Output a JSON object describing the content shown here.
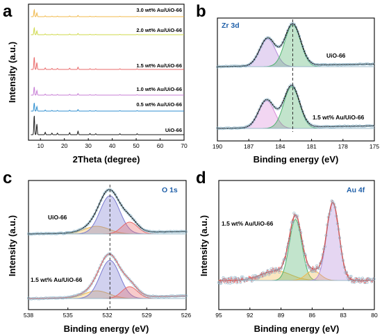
{
  "figure": {
    "panels": [
      {
        "id": "a",
        "letter": "a"
      },
      {
        "id": "b",
        "letter": "b"
      },
      {
        "id": "c",
        "letter": "c"
      },
      {
        "id": "d",
        "letter": "d"
      }
    ]
  },
  "chart_data": [
    {
      "panel": "a",
      "type": "line",
      "xlabel": "2Theta (degree)",
      "ylabel": "Intensity (a.u.)",
      "xlim": [
        5,
        70
      ],
      "xticks": [
        10,
        20,
        30,
        40,
        50,
        60,
        70
      ],
      "stacked": true,
      "series": [
        {
          "name": "UiO-66",
          "color": "#1a1a1a"
        },
        {
          "name": "0.5 wt% Au/UiO-66",
          "color": "#2f8fd0"
        },
        {
          "name": "1.0 wt% Au/UiO-66",
          "color": "#c77dd6"
        },
        {
          "name": "1.5 wt% Au/UiO-66",
          "color": "#ea6a6a"
        },
        {
          "name": "2.0 wt% Au/UiO-66",
          "color": "#cfd94a"
        },
        {
          "name": "3.0 wt% Au/UiO-66",
          "color": "#f0b84a"
        }
      ],
      "peaks_2theta": [
        7.4,
        8.5,
        12.0,
        14.8,
        17.1,
        22.2,
        25.7,
        30.7,
        33.1,
        43.2,
        50.4
      ]
    },
    {
      "panel": "b",
      "type": "line",
      "title": "Zr 3d",
      "xlabel": "Binding energy (eV)",
      "ylabel": "",
      "xlim": [
        190,
        175
      ],
      "xticks": [
        190,
        187,
        184,
        181,
        178,
        175
      ],
      "reference_line_eV": 182.8,
      "series": [
        {
          "name": "UiO-66",
          "peaks_eV": [
            185.2,
            182.8
          ],
          "peak_colors": [
            "#b48ad9",
            "#4fb26e"
          ]
        },
        {
          "name": "1.5 wt% Au/UiO-66",
          "peaks_eV": [
            185.3,
            182.9
          ],
          "peak_colors": [
            "#d98ad9",
            "#4fb26e"
          ]
        }
      ]
    },
    {
      "panel": "c",
      "type": "line",
      "title": "O 1s",
      "xlabel": "Binding energy (eV)",
      "ylabel": "Intensity (a.u.)",
      "xlim": [
        538,
        526
      ],
      "xticks": [
        538,
        535,
        532,
        529,
        526
      ],
      "reference_line_eV": 531.8,
      "series": [
        {
          "name": "UiO-66",
          "peaks_eV": [
            532.8,
            531.8,
            530.3
          ],
          "peak_colors": [
            "#f0b84a",
            "#7a7ad0",
            "#e86a6a"
          ]
        },
        {
          "name": "1.5 wt% Au/UiO-66",
          "peaks_eV": [
            532.8,
            531.8,
            530.3
          ],
          "peak_colors": [
            "#f0b84a",
            "#7a7ad0",
            "#e86a6a"
          ]
        }
      ]
    },
    {
      "panel": "d",
      "type": "line",
      "title": "Au 4f",
      "xlabel": "Binding energy (eV)",
      "ylabel": "Intensity (a.u.)",
      "xlim": [
        95,
        80
      ],
      "xticks": [
        95,
        92,
        89,
        86,
        83,
        80
      ],
      "series": [
        {
          "name": "1.5 wt% Au/UiO-66",
          "peaks_eV": [
            89.5,
            87.6,
            85.9,
            84.0
          ],
          "peak_colors": [
            "#f0b84a",
            "#4fb26e",
            "#f0b84a",
            "#b48ad9"
          ]
        }
      ]
    }
  ]
}
